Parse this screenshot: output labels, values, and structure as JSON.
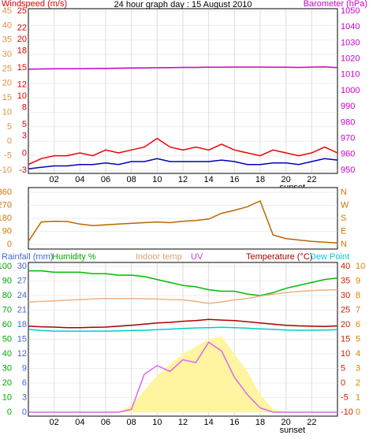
{
  "chart_data": [
    {
      "type": "line",
      "title": "24 hour graph day : 15 August 2010",
      "labels": [
        {
          "text": "Windspeed (m/s)",
          "color": "#dd0000"
        },
        {
          "text": "Barometer (hPa)",
          "color": "#cc00cc"
        }
      ],
      "x": [
        0,
        1,
        2,
        3,
        4,
        5,
        6,
        7,
        8,
        9,
        10,
        11,
        12,
        13,
        14,
        15,
        16,
        17,
        18,
        19,
        20,
        21,
        22,
        23,
        24
      ],
      "xlim": [
        0,
        24
      ],
      "xticks": [
        {
          "value": 2,
          "label": "02"
        },
        {
          "value": 4,
          "label": "04"
        },
        {
          "value": 6,
          "label": "06"
        },
        {
          "value": 8,
          "label": "08"
        },
        10,
        12,
        14,
        16,
        18,
        20,
        22
      ],
      "annotations": [
        {
          "text": "sunset",
          "x": 20.5
        }
      ],
      "axes": [
        {
          "side": "left",
          "color": "#e09040",
          "lim": [
            -10,
            45
          ],
          "ticks": [
            45,
            40,
            35,
            30,
            25,
            20,
            15,
            10,
            5,
            0,
            -5,
            -10
          ]
        },
        {
          "side": "left",
          "color": "#dd0000",
          "lim": [
            -3,
            25
          ],
          "ticks": [
            25,
            22,
            20,
            18,
            15,
            12,
            10,
            8,
            5,
            3,
            0,
            -3
          ]
        },
        {
          "side": "right",
          "color": "#cc00cc",
          "lim": [
            950,
            1050
          ],
          "ticks": [
            1050,
            1040,
            1030,
            1020,
            1010,
            1000,
            990,
            980,
            970,
            960,
            950
          ]
        }
      ],
      "series": [
        {
          "color": "#ee0000",
          "axis": 0,
          "values": [
            -8,
            -6,
            -5,
            -5,
            -4,
            -5,
            -3,
            -4,
            -3,
            -2,
            1,
            -2,
            -3,
            -2,
            -3,
            -1,
            -3,
            -4,
            -5,
            -3,
            -4,
            -5,
            -4,
            -2,
            -4
          ]
        },
        {
          "color": "#0000bb",
          "axis": 0,
          "values": [
            -9.5,
            -9,
            -8.5,
            -8.5,
            -8,
            -8,
            -7.5,
            -8,
            -7,
            -7,
            -6,
            -7,
            -7,
            -7,
            -7,
            -6.5,
            -7,
            -8,
            -8,
            -7.5,
            -7.5,
            -8,
            -7,
            -6,
            -6.5
          ]
        },
        {
          "color": "#cc00cc",
          "axis": 2,
          "values": [
            1013.5,
            1013.6,
            1013.7,
            1013.7,
            1013.8,
            1013.9,
            1014,
            1014.1,
            1014.2,
            1014.3,
            1014.4,
            1014.5,
            1014.6,
            1014.6,
            1014.7,
            1014.7,
            1014.8,
            1014.8,
            1014.8,
            1014.7,
            1014.7,
            1014.6,
            1014.8,
            1014.9,
            1014.5
          ]
        }
      ]
    },
    {
      "type": "line",
      "x": [
        0,
        1,
        2,
        3,
        4,
        5,
        6,
        7,
        8,
        9,
        10,
        11,
        12,
        13,
        14,
        15,
        16,
        17,
        18,
        19,
        20,
        21,
        22,
        23,
        24
      ],
      "xlim": [
        0,
        24
      ],
      "axes": [
        {
          "side": "left",
          "color": "#cc7700",
          "lim": [
            0,
            360
          ],
          "ticks": [
            360,
            270,
            180,
            90,
            0
          ]
        },
        {
          "side": "right",
          "color": "#cc7700",
          "lim": [
            0,
            360
          ],
          "ticks": [
            {
              "value": 360,
              "label": "N"
            },
            {
              "value": 270,
              "label": "W"
            },
            {
              "value": 180,
              "label": "S"
            },
            {
              "value": 90,
              "label": "E"
            },
            {
              "value": 0,
              "label": "N"
            }
          ]
        }
      ],
      "series": [
        {
          "color": "#bb6600",
          "axis": 0,
          "values": [
            20,
            155,
            160,
            158,
            140,
            130,
            135,
            140,
            145,
            150,
            155,
            150,
            160,
            165,
            175,
            215,
            235,
            260,
            300,
            65,
            40,
            30,
            20,
            15,
            10
          ]
        }
      ]
    },
    {
      "type": "line",
      "labels": [
        {
          "text": "Rainfall (mm)",
          "color": "#4466dd"
        },
        {
          "text": "Humidity %",
          "color": "#00aa00"
        },
        {
          "text": "Indoor temp",
          "color": "#e0a070"
        },
        {
          "text": "UV",
          "color": "#bb44dd"
        },
        {
          "text": "Temperature (°C)",
          "color": "#aa0000"
        },
        {
          "text": "Dew Point",
          "color": "#00cccc"
        }
      ],
      "x": [
        0,
        1,
        2,
        3,
        4,
        5,
        6,
        7,
        8,
        9,
        10,
        11,
        12,
        13,
        14,
        15,
        16,
        17,
        18,
        19,
        20,
        21,
        22,
        23,
        24
      ],
      "xlim": [
        0,
        24
      ],
      "xticks": [
        {
          "value": 2,
          "label": "02"
        },
        {
          "value": 4,
          "label": "04"
        },
        {
          "value": 6,
          "label": "06"
        },
        {
          "value": 8,
          "label": "08"
        },
        10,
        12,
        14,
        16,
        18,
        20,
        22
      ],
      "annotations": [
        {
          "text": "sunset",
          "x": 20.5
        }
      ],
      "axes": [
        {
          "side": "left",
          "color": "#00aa00",
          "lim": [
            0,
            100
          ],
          "ticks": [
            100,
            90,
            80,
            70,
            60,
            50,
            40,
            30,
            20,
            10,
            0
          ]
        },
        {
          "side": "left",
          "color": "#4466dd",
          "lim": [
            0,
            30
          ],
          "ticks": [
            30,
            27,
            24,
            21,
            18,
            15,
            12,
            9,
            6,
            3,
            0
          ]
        },
        {
          "side": "right",
          "color": "#cc2200",
          "lim": [
            -10,
            40
          ],
          "ticks": [
            40,
            35,
            30,
            25,
            20,
            15,
            10,
            5,
            0,
            -5,
            -10
          ]
        },
        {
          "side": "right",
          "color": "#e08000",
          "lim": [
            0,
            10
          ],
          "ticks": [
            10,
            9,
            8,
            7,
            6,
            5,
            4,
            3,
            2,
            1,
            0
          ]
        }
      ],
      "series": [
        {
          "color": "#fff5a0",
          "axis": 3,
          "area": true,
          "values": [
            0,
            0,
            0,
            0,
            0,
            0,
            0,
            0,
            0.5,
            1.5,
            2.5,
            3.3,
            4,
            4.5,
            5,
            5.2,
            4,
            2.8,
            1.2,
            0.2,
            0,
            0,
            0,
            0,
            0
          ]
        },
        {
          "color": "#00bb00",
          "axis": 0,
          "values": [
            97,
            97,
            96,
            96,
            96,
            95,
            95,
            94,
            94,
            93,
            91,
            89,
            87,
            86,
            84,
            83,
            83,
            81,
            80,
            82,
            85,
            87,
            89,
            91,
            92
          ]
        },
        {
          "color": "#f0b080",
          "axis": 2,
          "values": [
            27.8,
            28,
            28.2,
            28.4,
            28.6,
            28.8,
            29,
            29,
            29,
            28.9,
            28.8,
            28.6,
            28.5,
            28,
            27.3,
            27.8,
            28.5,
            29,
            29.8,
            30.5,
            31,
            31.4,
            31.7,
            31.9,
            32
          ]
        },
        {
          "color": "#aa0000",
          "axis": 2,
          "values": [
            19.5,
            19.3,
            19.2,
            19,
            19,
            19.1,
            19.2,
            19.5,
            19.8,
            20.2,
            20.6,
            20.8,
            21.2,
            21.4,
            21.8,
            21.6,
            21.4,
            21,
            20.6,
            20.2,
            19.8,
            19.6,
            19.5,
            19.4,
            19.6
          ]
        },
        {
          "color": "#00cccc",
          "axis": 2,
          "values": [
            18.4,
            18,
            17.8,
            17.8,
            17.8,
            17.8,
            17.8,
            17.9,
            18,
            18.1,
            18.3,
            18.5,
            18.7,
            18.9,
            19,
            19.1,
            19,
            18.8,
            18.6,
            18.4,
            18.2,
            18.1,
            18.1,
            18.2,
            18.3
          ]
        },
        {
          "color": "#dd66ee",
          "axis": 3,
          "values": [
            0,
            0,
            0,
            0,
            0,
            0,
            0,
            0,
            0.2,
            2.6,
            3.2,
            2.8,
            3.6,
            3.4,
            4.8,
            4.2,
            2.4,
            1.2,
            0.3,
            0,
            0,
            0,
            0,
            0,
            0
          ]
        }
      ]
    }
  ]
}
